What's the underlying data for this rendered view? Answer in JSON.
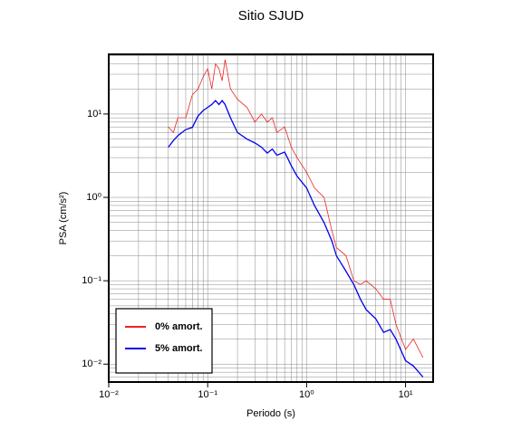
{
  "chart_data": {
    "type": "line",
    "title": "Sitio SJUD",
    "xlabel": "Periodo (s)",
    "ylabel": "PSA (cm/s²)",
    "xscale": "log",
    "yscale": "log",
    "grid": true,
    "legend": "lower left",
    "xlim": [
      0.01,
      19
    ],
    "ylim": [
      0.0061,
      52
    ],
    "xticks": [
      {
        "value": 0.01,
        "label": "10⁻²"
      },
      {
        "value": 0.1,
        "label": "10⁻¹"
      },
      {
        "value": 1,
        "label": "10⁰"
      },
      {
        "value": 10,
        "label": "10¹"
      }
    ],
    "yticks": [
      {
        "value": 0.01,
        "label": "10⁻²"
      },
      {
        "value": 0.1,
        "label": "10⁻¹"
      },
      {
        "value": 1,
        "label": "10⁰"
      },
      {
        "value": 10,
        "label": "10¹"
      }
    ],
    "x": [
      0.04,
      0.045,
      0.05,
      0.06,
      0.07,
      0.08,
      0.09,
      0.1,
      0.11,
      0.12,
      0.13,
      0.14,
      0.15,
      0.17,
      0.2,
      0.25,
      0.3,
      0.35,
      0.4,
      0.45,
      0.5,
      0.6,
      0.7,
      0.8,
      1.0,
      1.2,
      1.5,
      1.8,
      2.0,
      2.5,
      3.0,
      3.5,
      4.0,
      5.0,
      6.0,
      7.0,
      8.0,
      10,
      12,
      15
    ],
    "series": [
      {
        "name": "0% amort.",
        "color": "#ee2222",
        "values": [
          7,
          6,
          9,
          9,
          17,
          20,
          28,
          35,
          20,
          40,
          35,
          25,
          45,
          20,
          15,
          12,
          8,
          10,
          8,
          9,
          6,
          7,
          4,
          3,
          2,
          1.3,
          1,
          0.4,
          0.25,
          0.2,
          0.1,
          0.09,
          0.1,
          0.08,
          0.06,
          0.06,
          0.03,
          0.015,
          0.02,
          0.012
        ]
      },
      {
        "name": "5% amort.",
        "color": "#0000ee",
        "values": [
          4,
          4.8,
          5.5,
          6.5,
          6.9,
          9.5,
          11,
          12,
          13,
          14.5,
          13,
          14.5,
          13,
          9,
          6,
          5,
          4.5,
          4,
          3.4,
          3.8,
          3.2,
          3.5,
          2.4,
          1.8,
          1.3,
          0.8,
          0.5,
          0.3,
          0.2,
          0.13,
          0.09,
          0.06,
          0.045,
          0.035,
          0.024,
          0.026,
          0.02,
          0.011,
          0.0095,
          0.007
        ]
      }
    ]
  }
}
